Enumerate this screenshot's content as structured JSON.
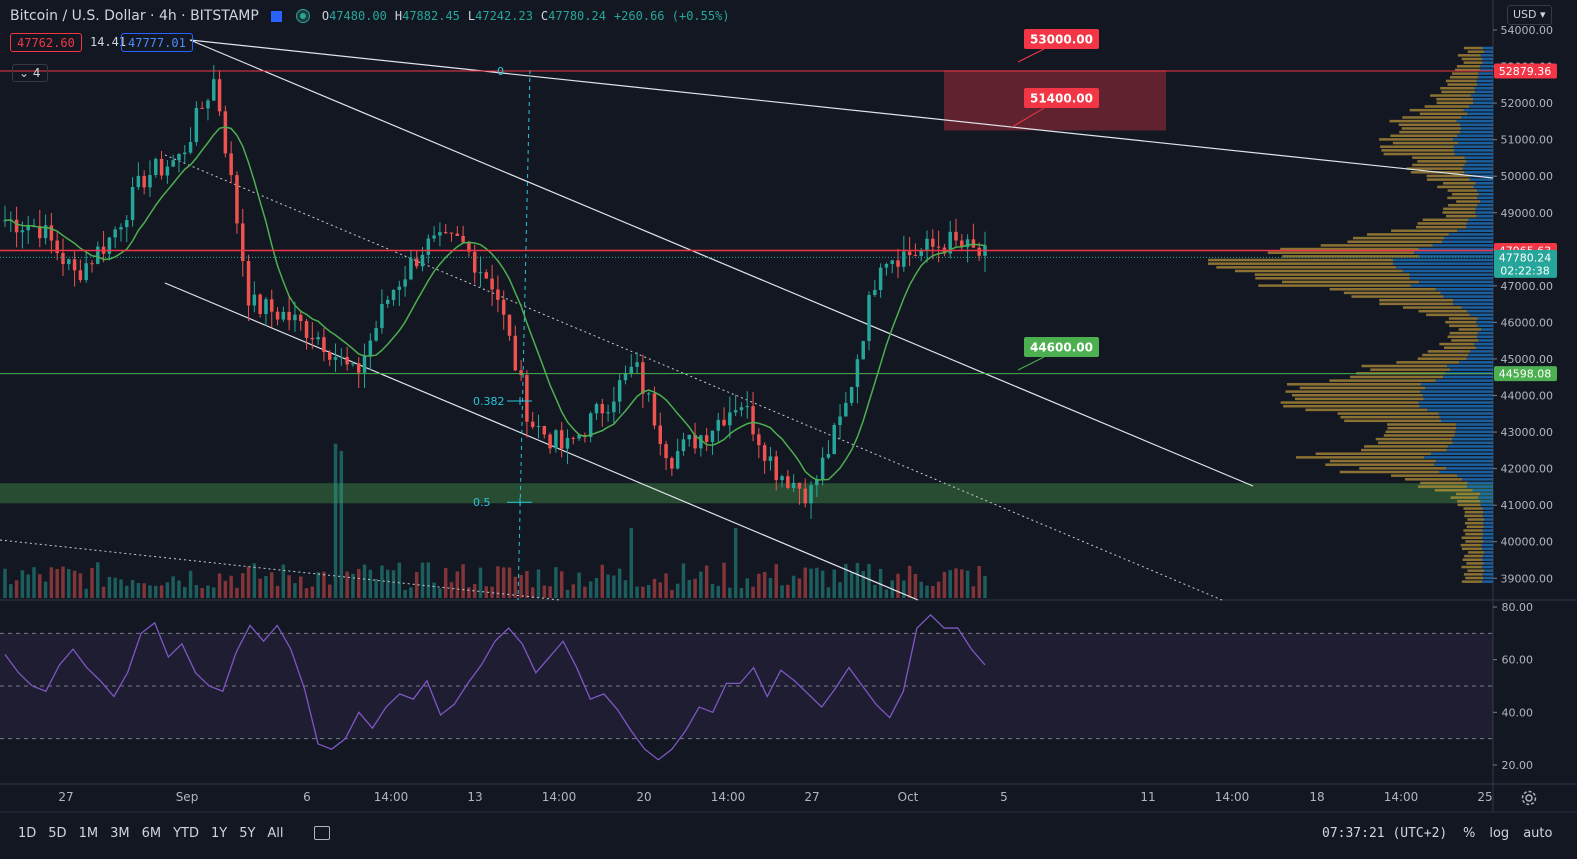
{
  "header": {
    "symbol_title": "Bitcoin / U.S. Dollar",
    "interval": "4h",
    "exchange": "BITSTAMP",
    "ohlc": {
      "o_label": "O",
      "o": "47480.00",
      "h_label": "H",
      "h": "47882.45",
      "l_label": "L",
      "l": "47242.23",
      "c_label": "C",
      "c": "47780.24",
      "change": "+260.66 (+0.55%)"
    },
    "sell_price": "47762.60",
    "spread": "14.41",
    "buy_price": "47777.01",
    "indicators_count": "4",
    "currency": "USD"
  },
  "colors": {
    "background": "#131722",
    "up": "#26a69a",
    "down": "#ef5350",
    "ma": "#4caf50",
    "rsi": "#7e57c2",
    "resistance": "#f23645",
    "support": "#4caf50",
    "fib": "#26c6da"
  },
  "chart_data": [
    {
      "type": "candlestick",
      "title": "Bitcoin / U.S. Dollar, 4h, BITSTAMP",
      "ylim": [
        38500,
        54300
      ],
      "y_ticks": [
        54000,
        53000,
        52000,
        51000,
        50000,
        49000,
        48000,
        47000,
        46000,
        45000,
        44000,
        43000,
        42000,
        41000,
        40000,
        39000
      ],
      "x_tick_labels": [
        "27",
        "Sep",
        "6",
        "14:00",
        "13",
        "14:00",
        "20",
        "14:00",
        "27",
        "Oct",
        "5",
        "11",
        "14:00",
        "18",
        "14:00",
        "25"
      ],
      "series_close_approx": [
        {
          "x": "Aug 26",
          "y": 48800
        },
        {
          "x": "Aug 28",
          "y": 48600
        },
        {
          "x": "Aug 30",
          "y": 47300
        },
        {
          "x": "Sep 1",
          "y": 48300
        },
        {
          "x": "Sep 3",
          "y": 50000
        },
        {
          "x": "Sep 5",
          "y": 50500
        },
        {
          "x": "Sep 7 00:00",
          "y": 52700
        },
        {
          "x": "Sep 7 12:00",
          "y": 46500
        },
        {
          "x": "Sep 9",
          "y": 46200
        },
        {
          "x": "Sep 11",
          "y": 45600
        },
        {
          "x": "Sep 13",
          "y": 44500
        },
        {
          "x": "Sep 14",
          "y": 46800
        },
        {
          "x": "Sep 16",
          "y": 48100
        },
        {
          "x": "Sep 18",
          "y": 48200
        },
        {
          "x": "Sep 19",
          "y": 47000
        },
        {
          "x": "Sep 20",
          "y": 43300
        },
        {
          "x": "Sep 21",
          "y": 42500
        },
        {
          "x": "Sep 22",
          "y": 43600
        },
        {
          "x": "Sep 23",
          "y": 44800
        },
        {
          "x": "Sep 24",
          "y": 42300
        },
        {
          "x": "Sep 26",
          "y": 43000
        },
        {
          "x": "Sep 27",
          "y": 43900
        },
        {
          "x": "Sep 28",
          "y": 42000
        },
        {
          "x": "Sep 29",
          "y": 41300
        },
        {
          "x": "Sep 30",
          "y": 43600
        },
        {
          "x": "Oct 1",
          "y": 47800
        },
        {
          "x": "Oct 2",
          "y": 47900
        },
        {
          "x": "Oct 3",
          "y": 48200
        },
        {
          "x": "Oct 3 12:00",
          "y": 47780
        }
      ],
      "price_labels": [
        {
          "value": 52879.36,
          "label": "52879.36",
          "color": "#f23645"
        },
        {
          "value": 47965.63,
          "label": "47965.63",
          "color": "#f23645"
        },
        {
          "value": 47780.24,
          "label": "47780.24",
          "sublabel": "02:22:38",
          "color": "#26a69a"
        },
        {
          "value": 44598.08,
          "label": "44598.08",
          "color": "#4caf50"
        }
      ],
      "annotations": [
        {
          "text": "53000.00",
          "value": 53000,
          "color": "#f23645"
        },
        {
          "text": "51400.00",
          "value": 51400,
          "color": "#f23645"
        },
        {
          "text": "44600.00",
          "value": 44600,
          "color": "#4caf50"
        }
      ],
      "fib_levels": [
        {
          "label": "0",
          "value": 52879
        },
        {
          "label": "0.382",
          "value": 43850
        },
        {
          "label": "0.5",
          "value": 41080
        }
      ],
      "resistance_zone": [
        51250,
        52900
      ],
      "support_zone": [
        41050,
        41600
      ]
    },
    {
      "type": "line",
      "title": "RSI",
      "ylim": [
        14,
        80
      ],
      "y_ticks": [
        80,
        60,
        40,
        20
      ],
      "band": [
        30,
        70
      ],
      "midline": 50,
      "series": [
        {
          "values": [
            62,
            55,
            50,
            48,
            58,
            64,
            57,
            52,
            46,
            55,
            70,
            74,
            61,
            66,
            55,
            50,
            48,
            63,
            73,
            67,
            73,
            64,
            49,
            28,
            26,
            30,
            40,
            34,
            42,
            47,
            45,
            52,
            39,
            43,
            51,
            58,
            67,
            72,
            66,
            55,
            61,
            67,
            57,
            45,
            47,
            41,
            33,
            26,
            22,
            26,
            33,
            42,
            40,
            51,
            51,
            57,
            46,
            56,
            52,
            47,
            42,
            49,
            57,
            50,
            43,
            38,
            48,
            72,
            77,
            72,
            72,
            64,
            58
          ]
        }
      ]
    }
  ],
  "bottom_bar": {
    "timeframes": [
      "1D",
      "5D",
      "1M",
      "3M",
      "6M",
      "YTD",
      "1Y",
      "5Y",
      "All"
    ],
    "clock": "07:37:21 (UTC+2)",
    "percent": "%",
    "log": "log",
    "auto": "auto"
  }
}
